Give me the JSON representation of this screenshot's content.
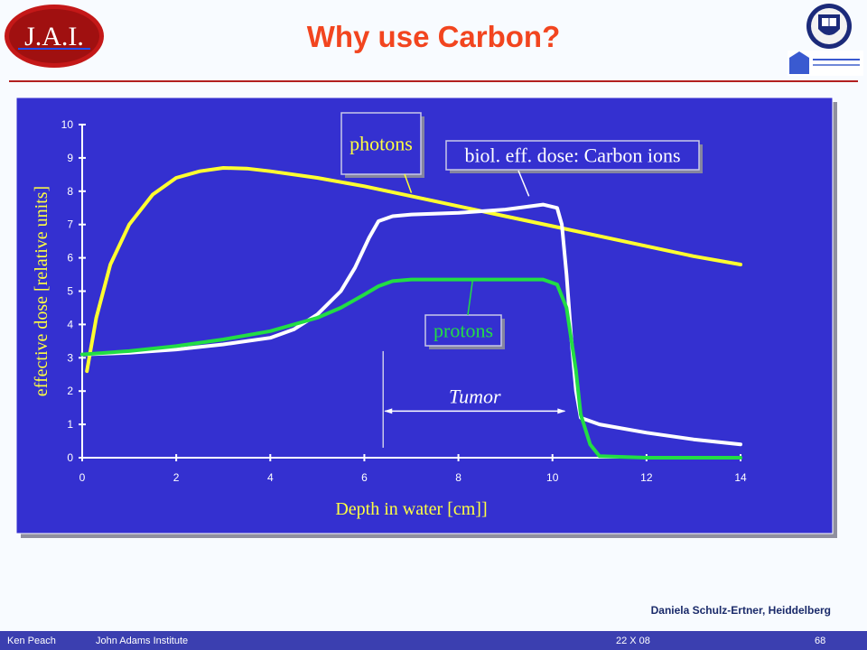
{
  "header": {
    "title": "Why use Carbon?",
    "logo_text": "J.A.I."
  },
  "credit": "Daniela  Schulz-Ertner, Heiddelberg",
  "footer": {
    "author": "Ken Peach",
    "institute": "John Adams Institute",
    "date": "22 X 08",
    "page": "68"
  },
  "colors": {
    "title": "#f2451f",
    "chart_bg": "#3430d0",
    "photons": "#ffff30",
    "carbon": "#ffffff",
    "protons": "#22dd44",
    "label_text": "#ffff40",
    "footer_bg": "#3b3fb0"
  },
  "chart_data": {
    "type": "line",
    "xlabel": "Depth in water [cm]]",
    "ylabel": "effective dose [relative units]",
    "xlim": [
      0,
      14
    ],
    "ylim": [
      0,
      10
    ],
    "x_ticks": [
      "0",
      "2",
      "4",
      "6",
      "8",
      "10",
      "12",
      "14"
    ],
    "y_ticks": [
      "0",
      "1",
      "2",
      "3",
      "4",
      "5",
      "6",
      "7",
      "8",
      "9",
      "10"
    ],
    "grid": false,
    "annotations": {
      "photons_label": "photons",
      "carbon_label": "biol. eff. dose: Carbon ions",
      "protons_label": "protons",
      "tumor_label": "Tumor"
    },
    "tumor_region": [
      6.4,
      10.3
    ],
    "series": [
      {
        "name": "photons",
        "color": "#ffff30",
        "x": [
          0.1,
          0.3,
          0.6,
          1.0,
          1.5,
          2.0,
          2.5,
          3.0,
          3.5,
          4.0,
          5.0,
          6.0,
          7.0,
          8.0,
          9.0,
          10.0,
          11.0,
          12.0,
          13.0,
          14.0
        ],
        "y": [
          2.6,
          4.2,
          5.8,
          7.0,
          7.9,
          8.4,
          8.6,
          8.7,
          8.68,
          8.6,
          8.4,
          8.15,
          7.85,
          7.55,
          7.25,
          6.95,
          6.65,
          6.35,
          6.05,
          5.8
        ]
      },
      {
        "name": "biol. eff. dose: Carbon ions",
        "color": "#ffffff",
        "x": [
          0.0,
          1.0,
          2.0,
          3.0,
          4.0,
          4.5,
          5.0,
          5.5,
          5.8,
          6.1,
          6.3,
          6.6,
          7.0,
          8.0,
          9.0,
          9.8,
          10.1,
          10.2,
          10.3,
          10.4,
          10.5,
          10.6,
          11.0,
          12.0,
          13.0,
          14.0
        ],
        "y": [
          3.1,
          3.15,
          3.25,
          3.4,
          3.6,
          3.85,
          4.3,
          5.0,
          5.7,
          6.6,
          7.1,
          7.25,
          7.3,
          7.35,
          7.45,
          7.6,
          7.5,
          7.0,
          5.5,
          3.6,
          2.0,
          1.2,
          1.0,
          0.75,
          0.55,
          0.4
        ]
      },
      {
        "name": "protons",
        "color": "#22dd44",
        "x": [
          0.0,
          1.0,
          2.0,
          3.0,
          4.0,
          5.0,
          5.5,
          6.0,
          6.3,
          6.6,
          7.0,
          8.0,
          9.0,
          9.8,
          10.1,
          10.3,
          10.5,
          10.6,
          10.8,
          11.0,
          12.0,
          13.0,
          14.0
        ],
        "y": [
          3.1,
          3.2,
          3.35,
          3.55,
          3.8,
          4.2,
          4.5,
          4.9,
          5.15,
          5.3,
          5.35,
          5.35,
          5.35,
          5.35,
          5.2,
          4.5,
          2.6,
          1.3,
          0.4,
          0.05,
          0.0,
          0.0,
          0.0
        ]
      }
    ]
  }
}
